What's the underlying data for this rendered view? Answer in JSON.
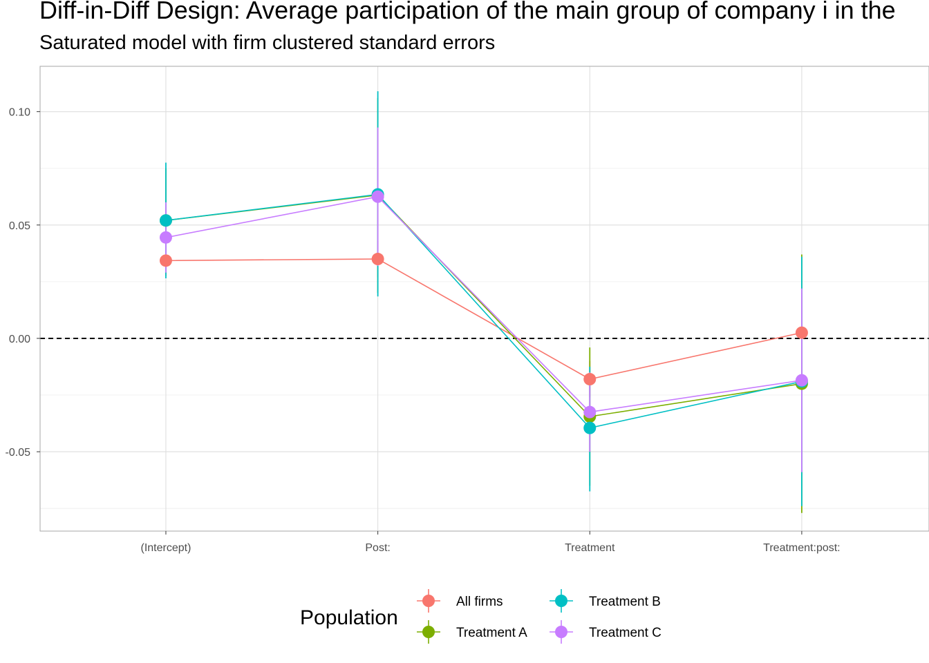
{
  "chart_data": {
    "type": "scatter",
    "title": "Diff-in-Diff Design: Average participation of the main group of company i in the",
    "subtitle": "Saturated model with firm clustered standard errors",
    "xlabel": "",
    "ylabel": "",
    "categories": [
      "(Intercept)",
      "Post:",
      "Treatment",
      "Treatment:post:"
    ],
    "ylim": [
      -0.085,
      0.12
    ],
    "yticks": [
      -0.05,
      0.0,
      0.05,
      0.1
    ],
    "ytick_labels": [
      "-0.05",
      "0.00",
      "0.05",
      "0.10"
    ],
    "reference_line": {
      "y": 0,
      "style": "dashed"
    },
    "grid": true,
    "legend_position": "bottom",
    "legend_title": "Population",
    "series": [
      {
        "name": "All firms",
        "color": "#F8766D",
        "values": [
          0.0343,
          0.035,
          -0.018,
          0.0025
        ],
        "lower": [
          0.0275,
          0.027,
          -0.026,
          -0.015
        ],
        "upper": [
          0.041,
          0.043,
          -0.01,
          0.02
        ]
      },
      {
        "name": "Treatment A",
        "color": "#7CAE00",
        "values": [
          0.052,
          0.0632,
          -0.0345,
          -0.02
        ],
        "lower": [
          0.029,
          0.02,
          -0.065,
          -0.077
        ],
        "upper": [
          0.075,
          0.106,
          -0.004,
          0.037
        ]
      },
      {
        "name": "Treatment B",
        "color": "#00BFC4",
        "values": [
          0.052,
          0.0635,
          -0.0395,
          -0.019
        ],
        "lower": [
          0.0265,
          0.0185,
          -0.0675,
          -0.074
        ],
        "upper": [
          0.0775,
          0.109,
          -0.0125,
          0.036
        ]
      },
      {
        "name": "Treatment C",
        "color": "#C77CFF",
        "values": [
          0.0445,
          0.0625,
          -0.0325,
          -0.0185
        ],
        "lower": [
          0.029,
          0.032,
          -0.05,
          -0.059
        ],
        "upper": [
          0.06,
          0.093,
          -0.015,
          0.022
        ]
      }
    ]
  }
}
